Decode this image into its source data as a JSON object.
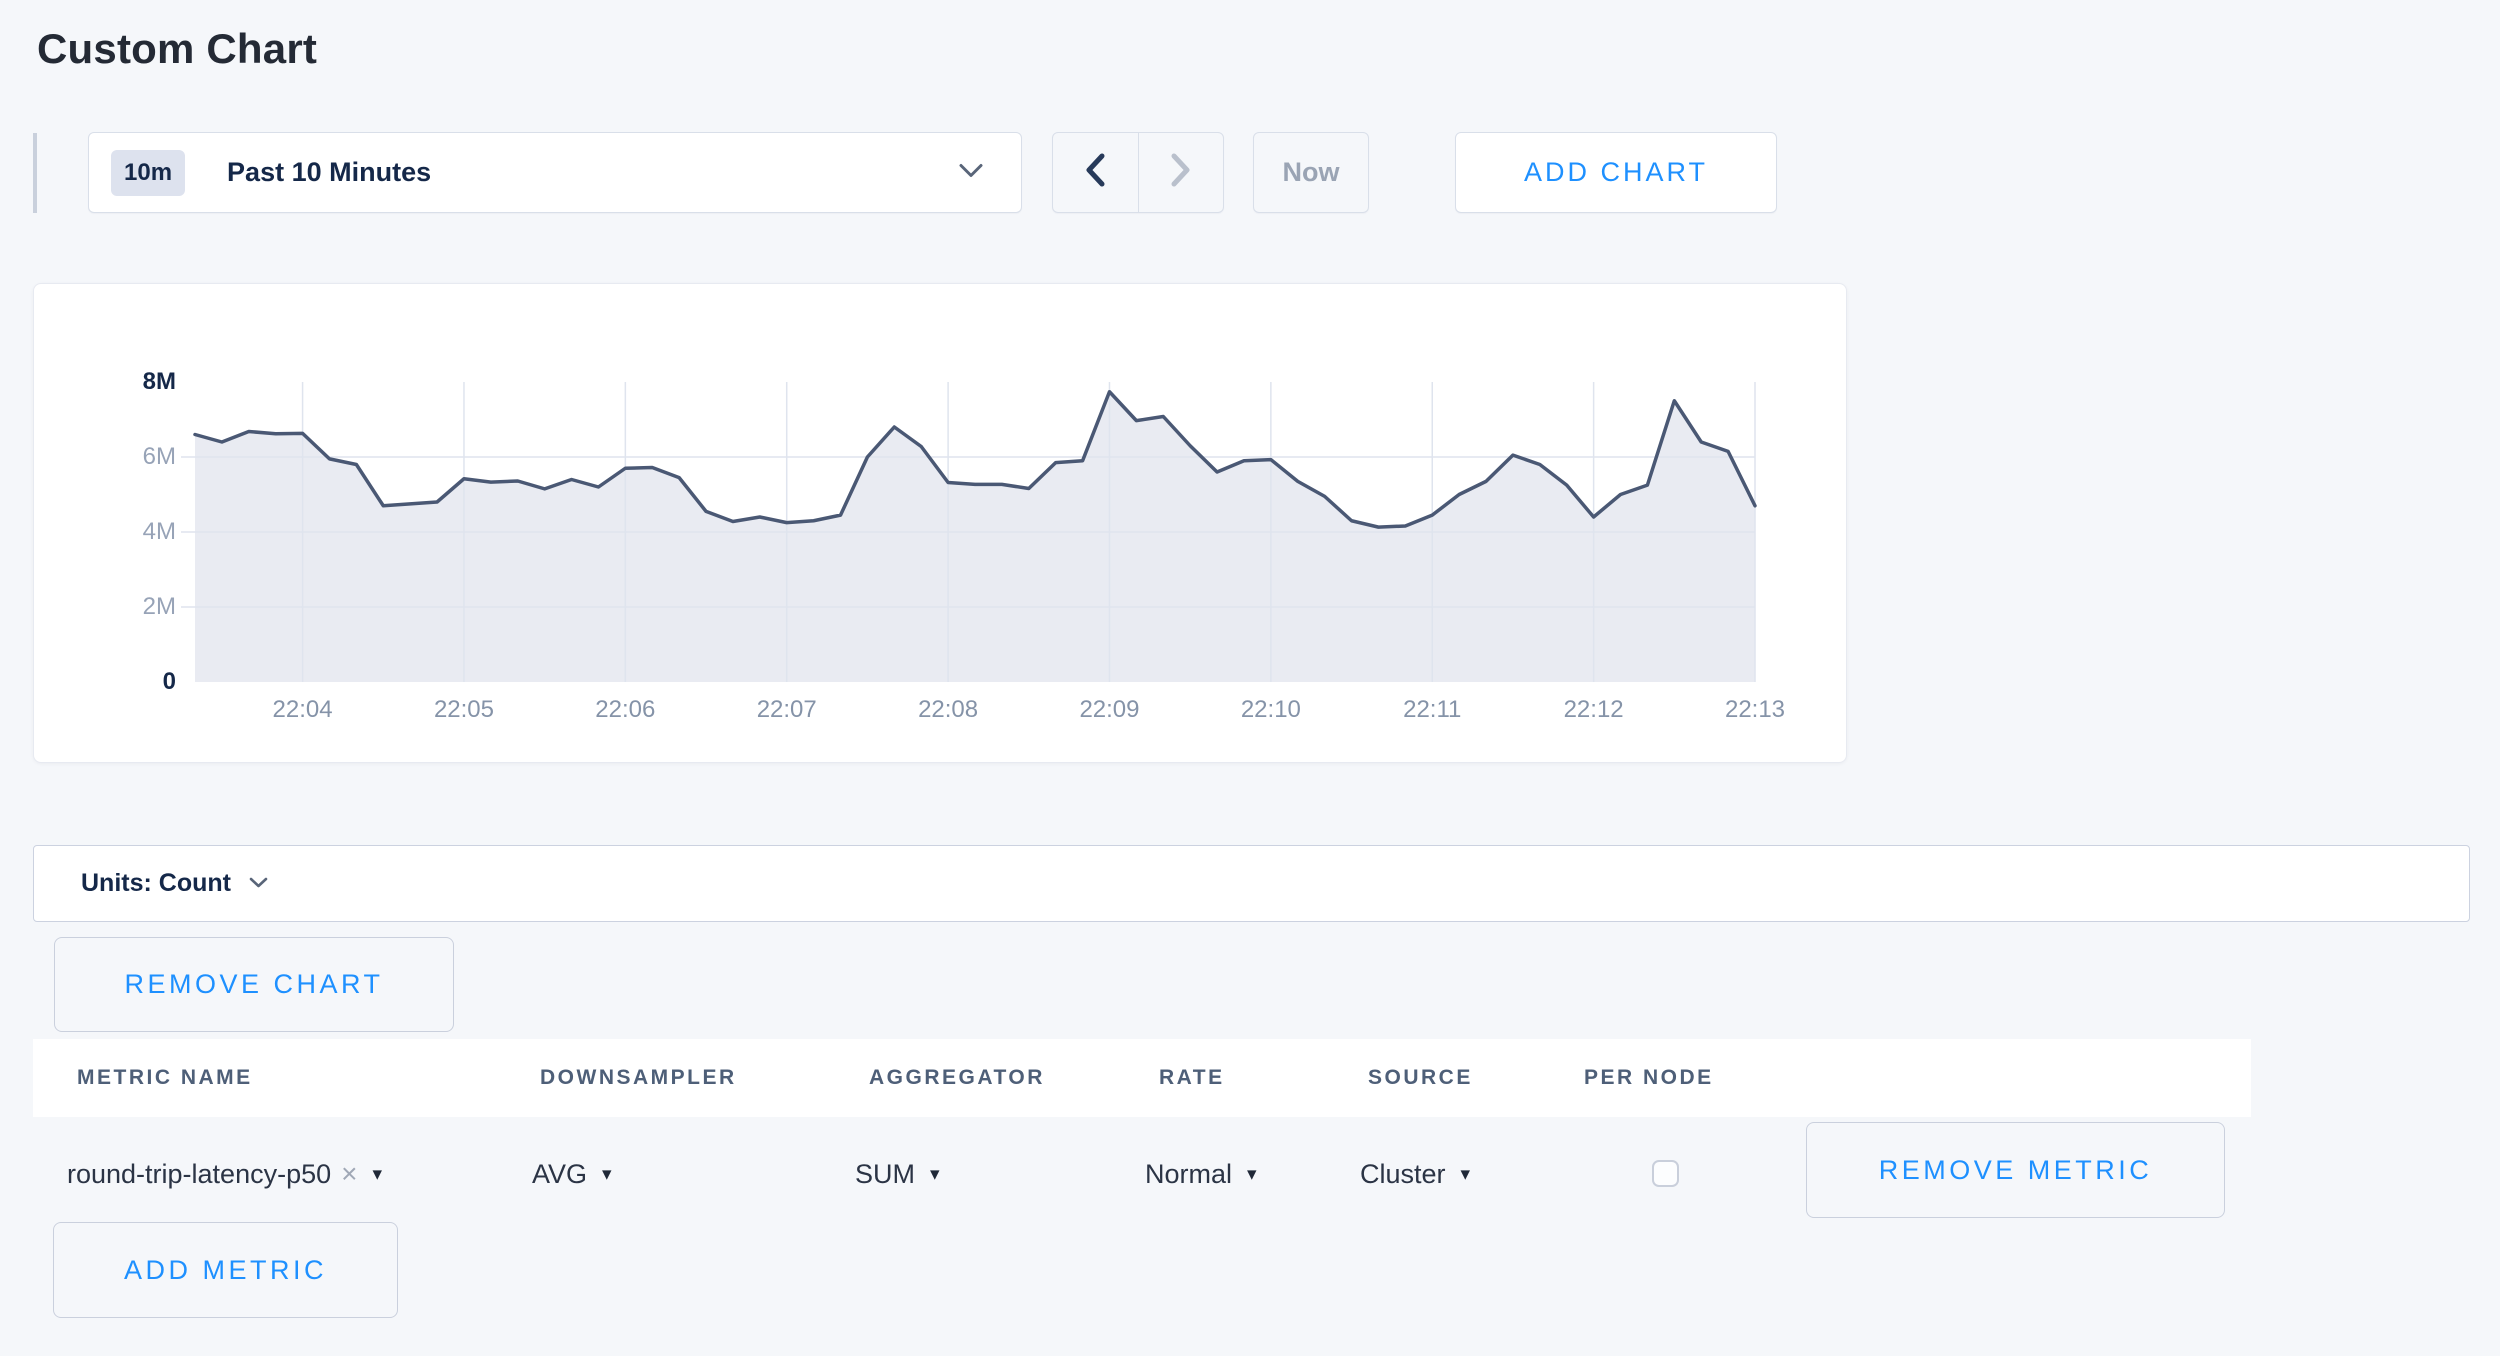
{
  "page": {
    "title": "Custom Chart"
  },
  "toolbar": {
    "range_badge": "10m",
    "range_label": "Past 10 Minutes",
    "now_label": "Now",
    "add_chart_label": "ADD CHART"
  },
  "icons": {
    "chevron_down": "chevron-down",
    "chevron_left": "chevron-left",
    "chevron_right": "chevron-right",
    "caret_down": "▾",
    "clear_x": "×"
  },
  "units_bar": {
    "label": "Units: Count"
  },
  "chart_actions": {
    "remove_chart_label": "REMOVE CHART",
    "add_metric_label": "ADD METRIC"
  },
  "metrics_table": {
    "columns": [
      "METRIC NAME",
      "DOWNSAMPLER",
      "AGGREGATOR",
      "RATE",
      "SOURCE",
      "PER NODE"
    ],
    "row": {
      "metric_name": "round-trip-latency-p50",
      "downsampler": "AVG",
      "aggregator": "SUM",
      "rate": "Normal",
      "source": "Cluster",
      "per_node_checked": false,
      "remove_label": "REMOVE METRIC"
    }
  },
  "chart_data": {
    "type": "area",
    "title": "",
    "unit": "Count",
    "y_ticks": [
      "8M",
      "6M",
      "4M",
      "2M",
      "0"
    ],
    "ylim_millions": [
      0,
      8
    ],
    "x_start_label": "22:03:20",
    "x_step_seconds": 10,
    "x_tick_labels": [
      "22:04",
      "22:05",
      "22:06",
      "22:07",
      "22:08",
      "22:09",
      "22:10",
      "22:11",
      "22:12",
      "22:13"
    ],
    "x_tick_indices": [
      4,
      10,
      16,
      22,
      28,
      34,
      40,
      46,
      52,
      58
    ],
    "grid": true,
    "legend": "none",
    "series": [
      {
        "name": "round-trip-latency-p50",
        "values_millions": [
          6.6,
          6.4,
          6.68,
          6.62,
          6.63,
          5.95,
          5.8,
          4.7,
          4.75,
          4.8,
          5.42,
          5.33,
          5.36,
          5.15,
          5.4,
          5.2,
          5.7,
          5.72,
          5.45,
          4.55,
          4.28,
          4.4,
          4.25,
          4.3,
          4.45,
          6.0,
          6.8,
          6.28,
          5.32,
          5.27,
          5.27,
          5.16,
          5.85,
          5.9,
          7.74,
          6.97,
          7.08,
          6.3,
          5.6,
          5.9,
          5.93,
          5.35,
          4.95,
          4.3,
          4.13,
          4.16,
          4.45,
          5.0,
          5.35,
          6.05,
          5.8,
          5.25,
          4.4,
          5.0,
          5.25,
          7.5,
          6.4,
          6.15,
          4.7
        ]
      }
    ],
    "colors": {
      "line": "#4a5874",
      "fill": "#e9ebf2",
      "grid": "#dfe4ee",
      "accent_blue": "#1e90ff",
      "axis_label": "#8593a8",
      "axis_label_strong": "#152849"
    }
  }
}
